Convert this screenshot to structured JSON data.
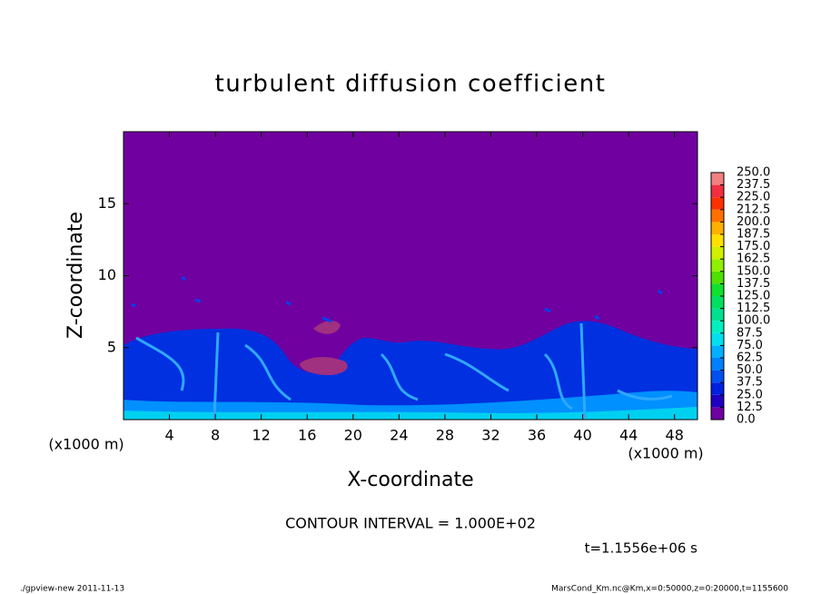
{
  "chart_data": {
    "type": "contour",
    "title": "turbulent diffusion coefficient",
    "x_label": "X-coordinate",
    "y_label": "Z-coordinate",
    "x_unit": "(x1000 m)",
    "y_unit": "(x1000 m)",
    "xlim": [
      0,
      50
    ],
    "ylim": [
      0,
      20
    ],
    "xticks": [
      4,
      8,
      12,
      16,
      20,
      24,
      28,
      32,
      36,
      40,
      44,
      48
    ],
    "yticks": [
      5,
      10,
      15
    ],
    "background_color": "#7000a0",
    "colorbar": {
      "levels": [
        {
          "value": 0,
          "label": "0.0"
        },
        {
          "value": 12.5,
          "label": "12.5"
        },
        {
          "value": 25,
          "label": "25.0"
        },
        {
          "value": 37.5,
          "label": "37.5"
        },
        {
          "value": 50,
          "label": "50.0"
        },
        {
          "value": 62.5,
          "label": "62.5"
        },
        {
          "value": 75,
          "label": "75.0"
        },
        {
          "value": 87.5,
          "label": "87.5"
        },
        {
          "value": 100,
          "label": "100.0"
        },
        {
          "value": 112.5,
          "label": "112.5"
        },
        {
          "value": 125,
          "label": "125.0"
        },
        {
          "value": 137.5,
          "label": "137.5"
        },
        {
          "value": 150,
          "label": "150.0"
        },
        {
          "value": 162.5,
          "label": "162.5"
        },
        {
          "value": 175,
          "label": "175.0"
        },
        {
          "value": 187.5,
          "label": "187.5"
        },
        {
          "value": 200,
          "label": "200.0"
        },
        {
          "value": 212.5,
          "label": "212.5"
        },
        {
          "value": 225,
          "label": "225.0"
        },
        {
          "value": 237.5,
          "label": "237.5"
        },
        {
          "value": 250,
          "label": "250.0"
        }
      ],
      "colors": [
        "#7000a0",
        "#2000c0",
        "#0020e0",
        "#0050f0",
        "#0080ff",
        "#00b0ff",
        "#00e0f0",
        "#00f0c0",
        "#00e090",
        "#00e060",
        "#10e030",
        "#50e000",
        "#90f000",
        "#d0f000",
        "#ffe000",
        "#ffb000",
        "#ff7000",
        "#ff3000",
        "#f03040",
        "#f08080"
      ]
    },
    "contour_interval": "CONTOUR INTERVAL = 1.000E+02",
    "time_label": "t=1.1556e+06 s",
    "footer_left": "./gpview-new  2011-11-13",
    "footer_right": "MarsCond_Km.nc@Km,x=0:50000,z=0:20000,t=1155600"
  }
}
